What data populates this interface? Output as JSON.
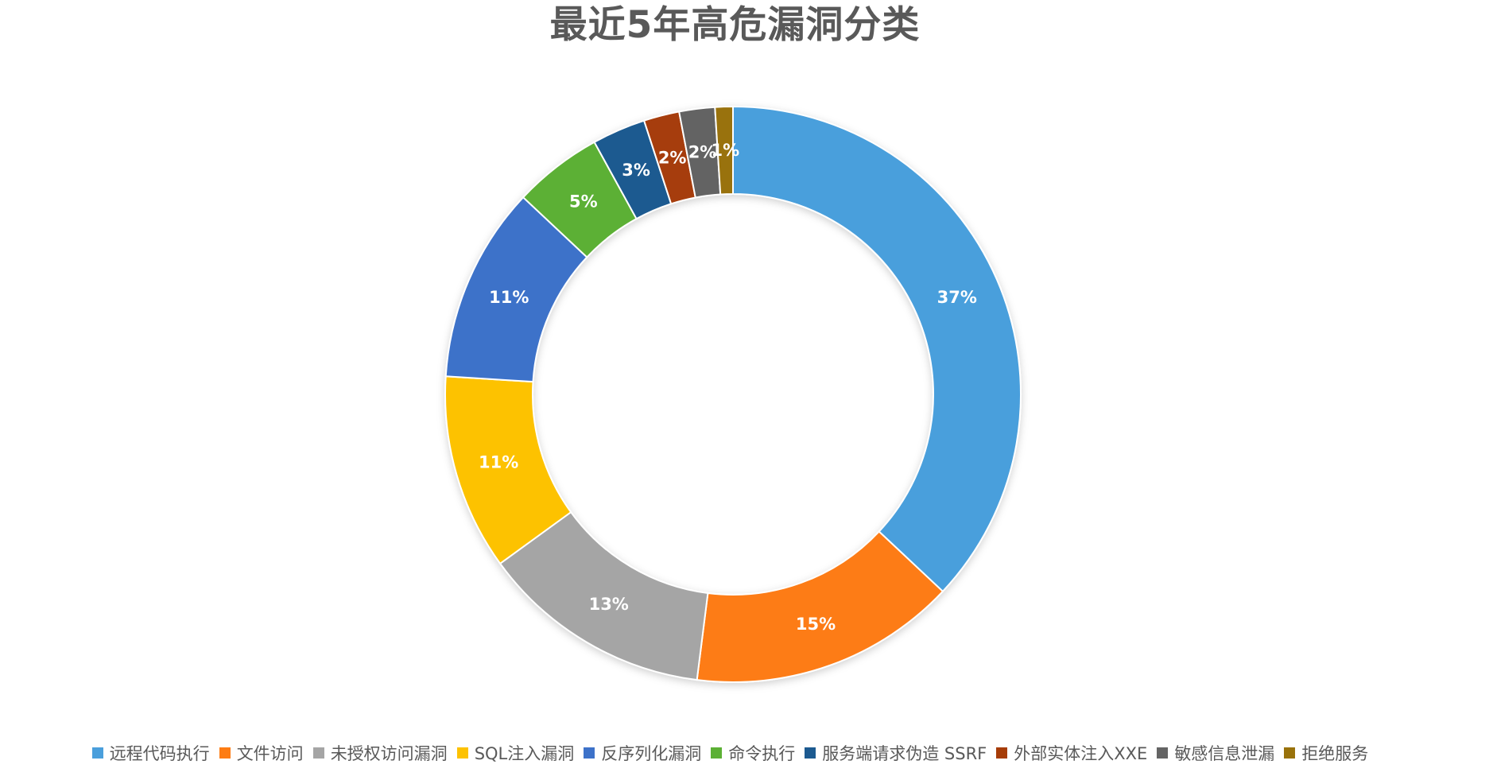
{
  "chart_data": {
    "type": "pie",
    "variant": "donut",
    "title": "最近5年高危漏洞分类",
    "categories": [
      "远程代码执行",
      "文件访问",
      "未授权访问漏洞",
      "SQL注入漏洞",
      "反序列化漏洞",
      "命令执行",
      "服务端请求伪造 SSRF",
      "外部实体注入XXE",
      "敏感信息泄漏",
      "拒绝服务"
    ],
    "values": [
      37,
      15,
      13,
      11,
      11,
      5,
      3,
      2,
      2,
      1
    ],
    "labels": [
      "37%",
      "15%",
      "13%",
      "11%",
      "11%",
      "5%",
      "3%",
      "2%",
      "2%",
      "1%"
    ],
    "colors": [
      "#4A9FDC",
      "#FD7C13",
      "#A5A5A5",
      "#FDC200",
      "#3D72C9",
      "#5CB035",
      "#1C5A90",
      "#A63C07",
      "#646464",
      "#99720B"
    ],
    "legend_position": "bottom"
  }
}
